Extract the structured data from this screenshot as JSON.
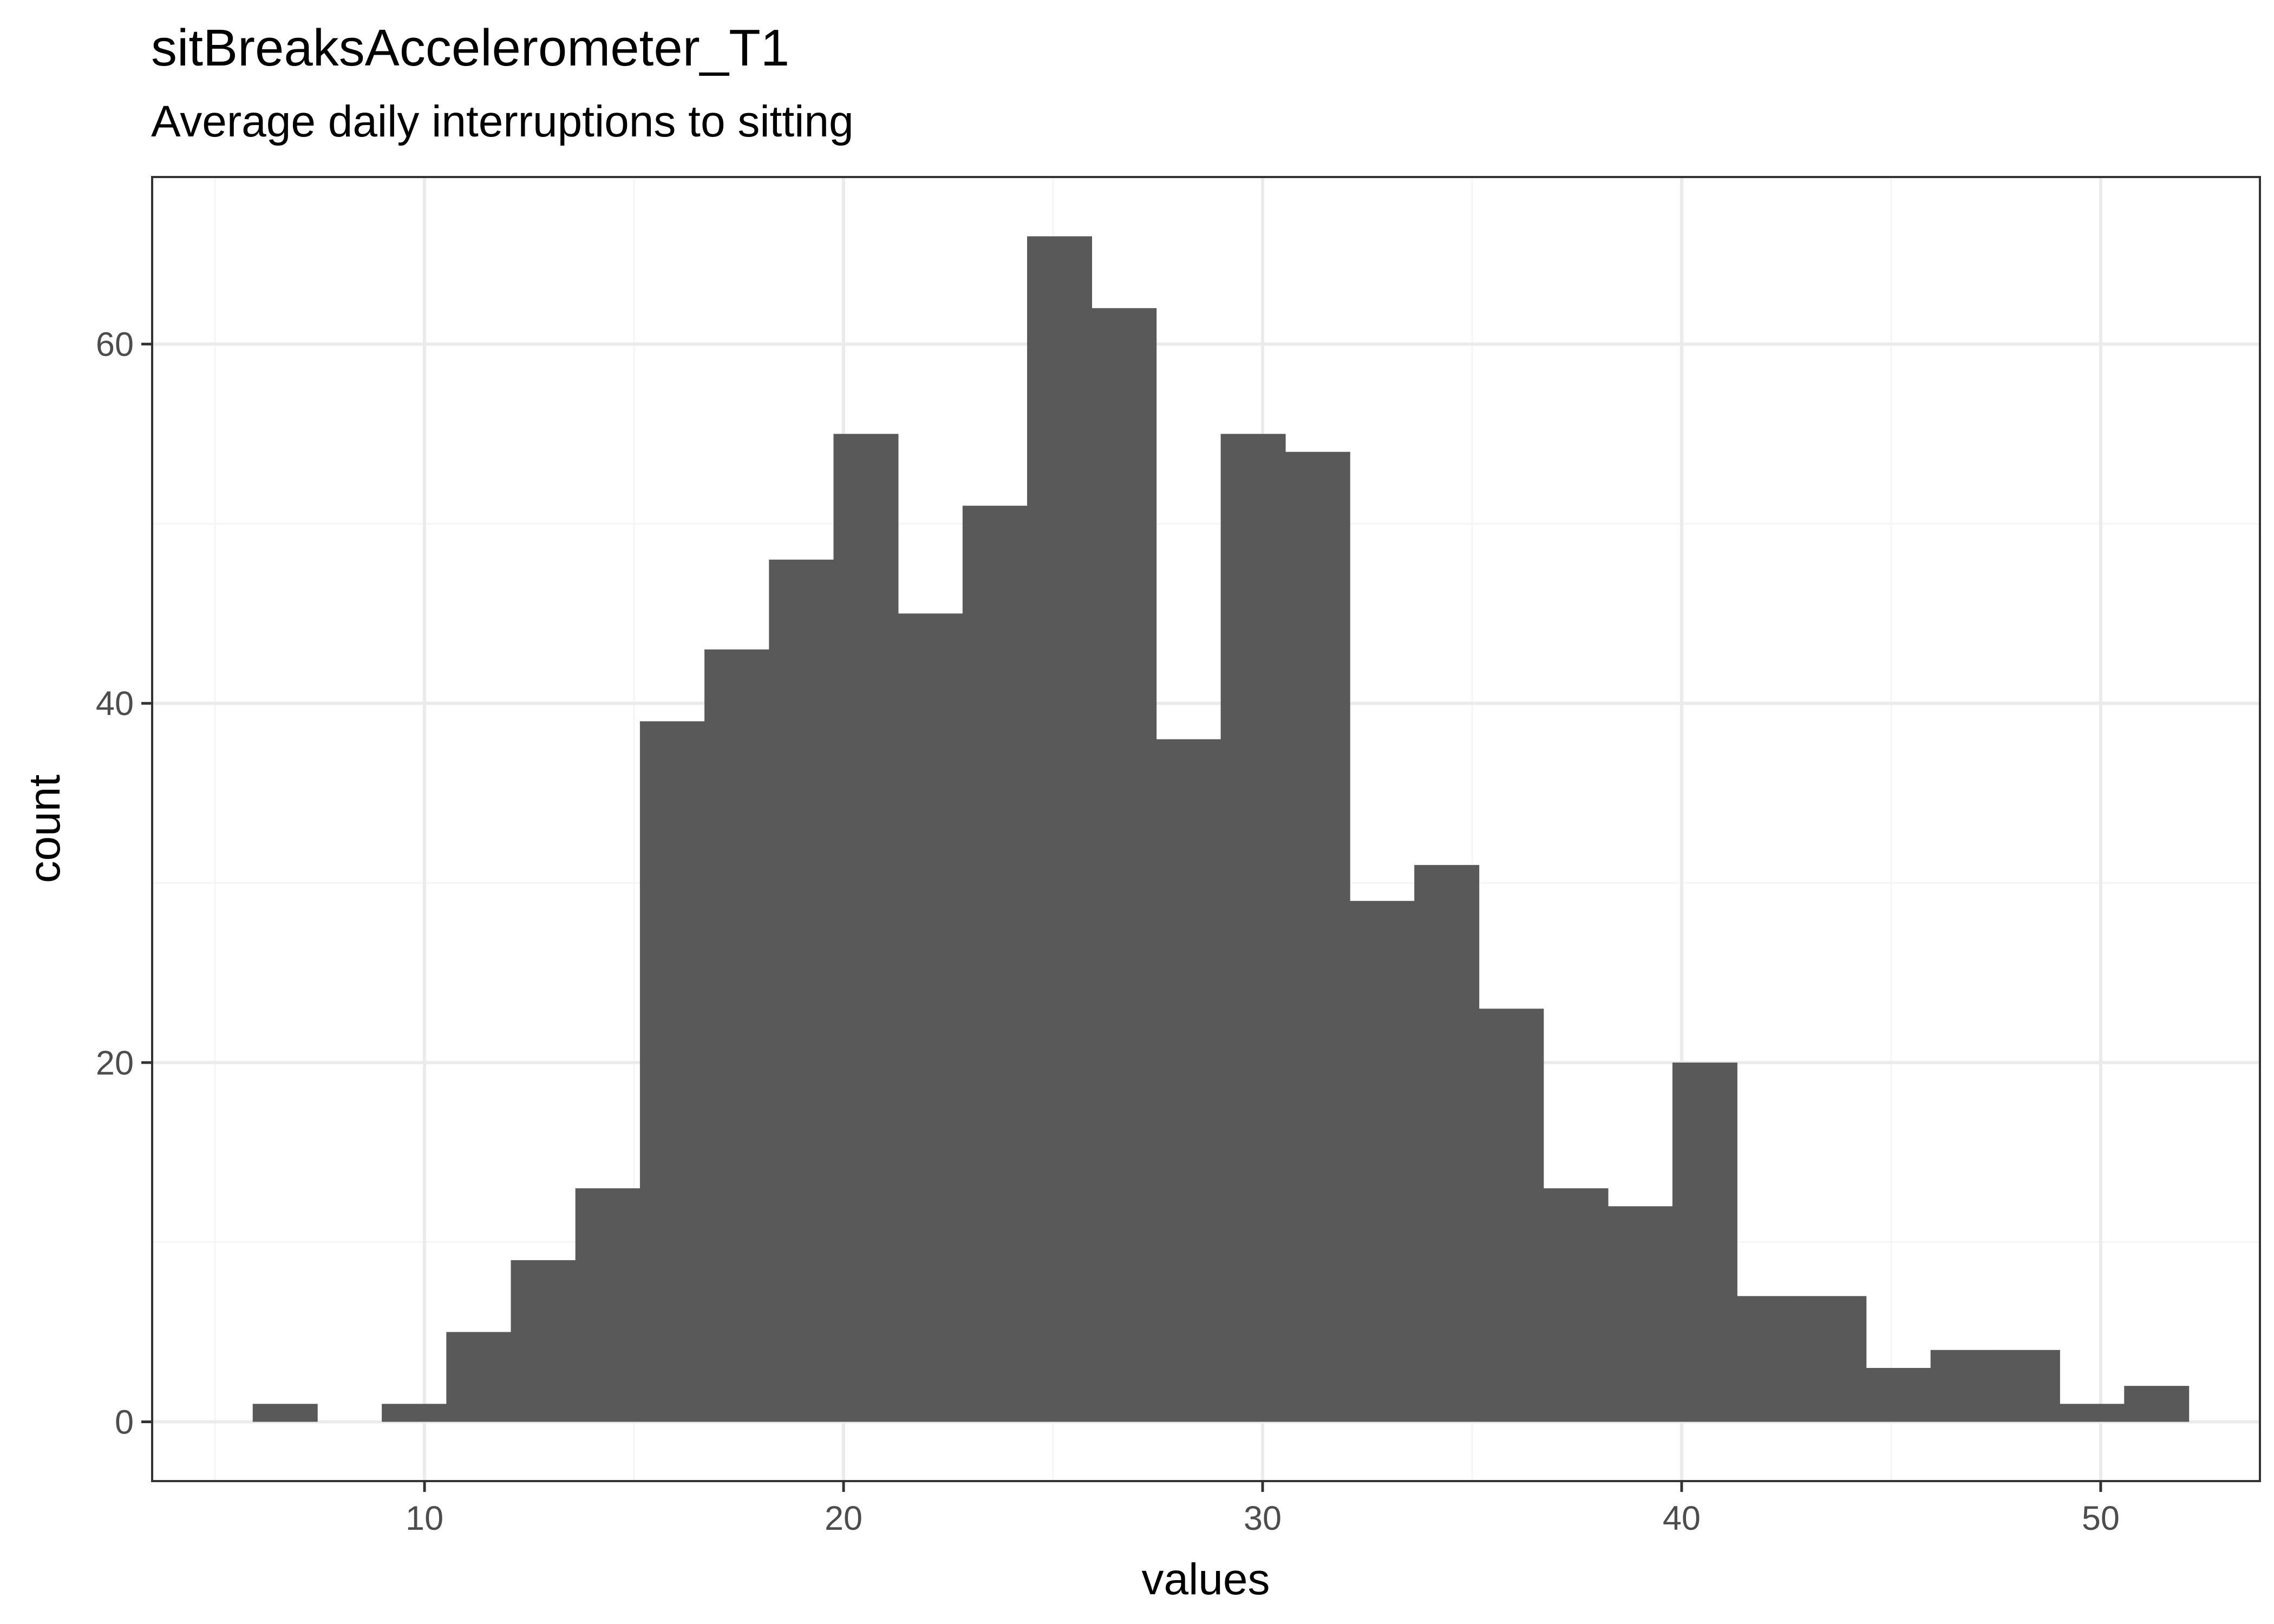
{
  "chart_data": {
    "type": "bar",
    "title": "sitBreaksAccelerometer_T1",
    "subtitle": "Average daily interruptions to sitting",
    "xlabel": "values",
    "ylabel": "count",
    "xlim": [
      3.5,
      53.8
    ],
    "ylim": [
      -3.3,
      69.3
    ],
    "x_ticks": [
      10,
      20,
      30,
      40,
      50
    ],
    "x_minor_ticks": [
      5,
      15,
      25,
      35,
      45
    ],
    "y_ticks": [
      0,
      20,
      40,
      60
    ],
    "y_minor_ticks": [
      10,
      30,
      50
    ],
    "grid": true,
    "bin_width": 1.54,
    "bins": [
      {
        "x0": 5.9,
        "count": 1
      },
      {
        "x0": 7.44,
        "count": 0
      },
      {
        "x0": 8.98,
        "count": 1
      },
      {
        "x0": 10.52,
        "count": 5
      },
      {
        "x0": 12.06,
        "count": 9
      },
      {
        "x0": 13.6,
        "count": 13
      },
      {
        "x0": 15.14,
        "count": 39
      },
      {
        "x0": 16.68,
        "count": 43
      },
      {
        "x0": 18.22,
        "count": 48
      },
      {
        "x0": 19.76,
        "count": 55
      },
      {
        "x0": 21.3,
        "count": 45
      },
      {
        "x0": 22.84,
        "count": 51
      },
      {
        "x0": 24.38,
        "count": 66
      },
      {
        "x0": 25.92,
        "count": 62
      },
      {
        "x0": 27.46,
        "count": 38
      },
      {
        "x0": 29.0,
        "count": 55
      },
      {
        "x0": 30.54,
        "count": 54
      },
      {
        "x0": 32.08,
        "count": 29
      },
      {
        "x0": 33.62,
        "count": 31
      },
      {
        "x0": 35.16,
        "count": 23
      },
      {
        "x0": 36.7,
        "count": 13
      },
      {
        "x0": 38.24,
        "count": 12
      },
      {
        "x0": 39.78,
        "count": 20
      },
      {
        "x0": 41.32,
        "count": 7
      },
      {
        "x0": 42.86,
        "count": 7
      },
      {
        "x0": 44.4,
        "count": 3
      },
      {
        "x0": 45.94,
        "count": 4
      },
      {
        "x0": 47.48,
        "count": 4
      },
      {
        "x0": 49.02,
        "count": 1
      },
      {
        "x0": 50.56,
        "count": 2
      }
    ],
    "colors": {
      "bar": "#595959",
      "grid_major": "#ebebeb",
      "grid_minor": "#f5f5f5",
      "panel_border": "#333333",
      "tick_label": "#4d4d4d",
      "tick_mark": "#333333"
    }
  }
}
